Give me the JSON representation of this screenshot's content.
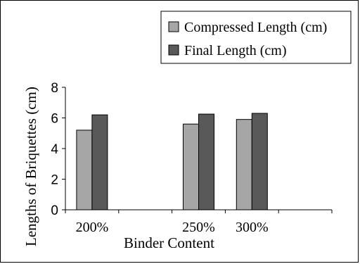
{
  "chart_data": {
    "type": "bar",
    "categories": [
      "200%",
      "",
      "250%",
      "300%",
      ""
    ],
    "series": [
      {
        "name": "Compressed Length (cm)",
        "values": [
          5.2,
          null,
          5.6,
          5.9,
          null
        ],
        "color": "#a6a6a6"
      },
      {
        "name": "Final Length (cm)",
        "values": [
          6.2,
          null,
          6.25,
          6.3,
          null
        ],
        "color": "#595959"
      }
    ],
    "xlabel": "Binder Content",
    "ylabel": "Lengths of Briquettes (cm)",
    "ylim": [
      0,
      8
    ],
    "yticks": [
      0,
      2,
      4,
      6,
      8
    ],
    "grid": false,
    "legend": "top-right"
  }
}
